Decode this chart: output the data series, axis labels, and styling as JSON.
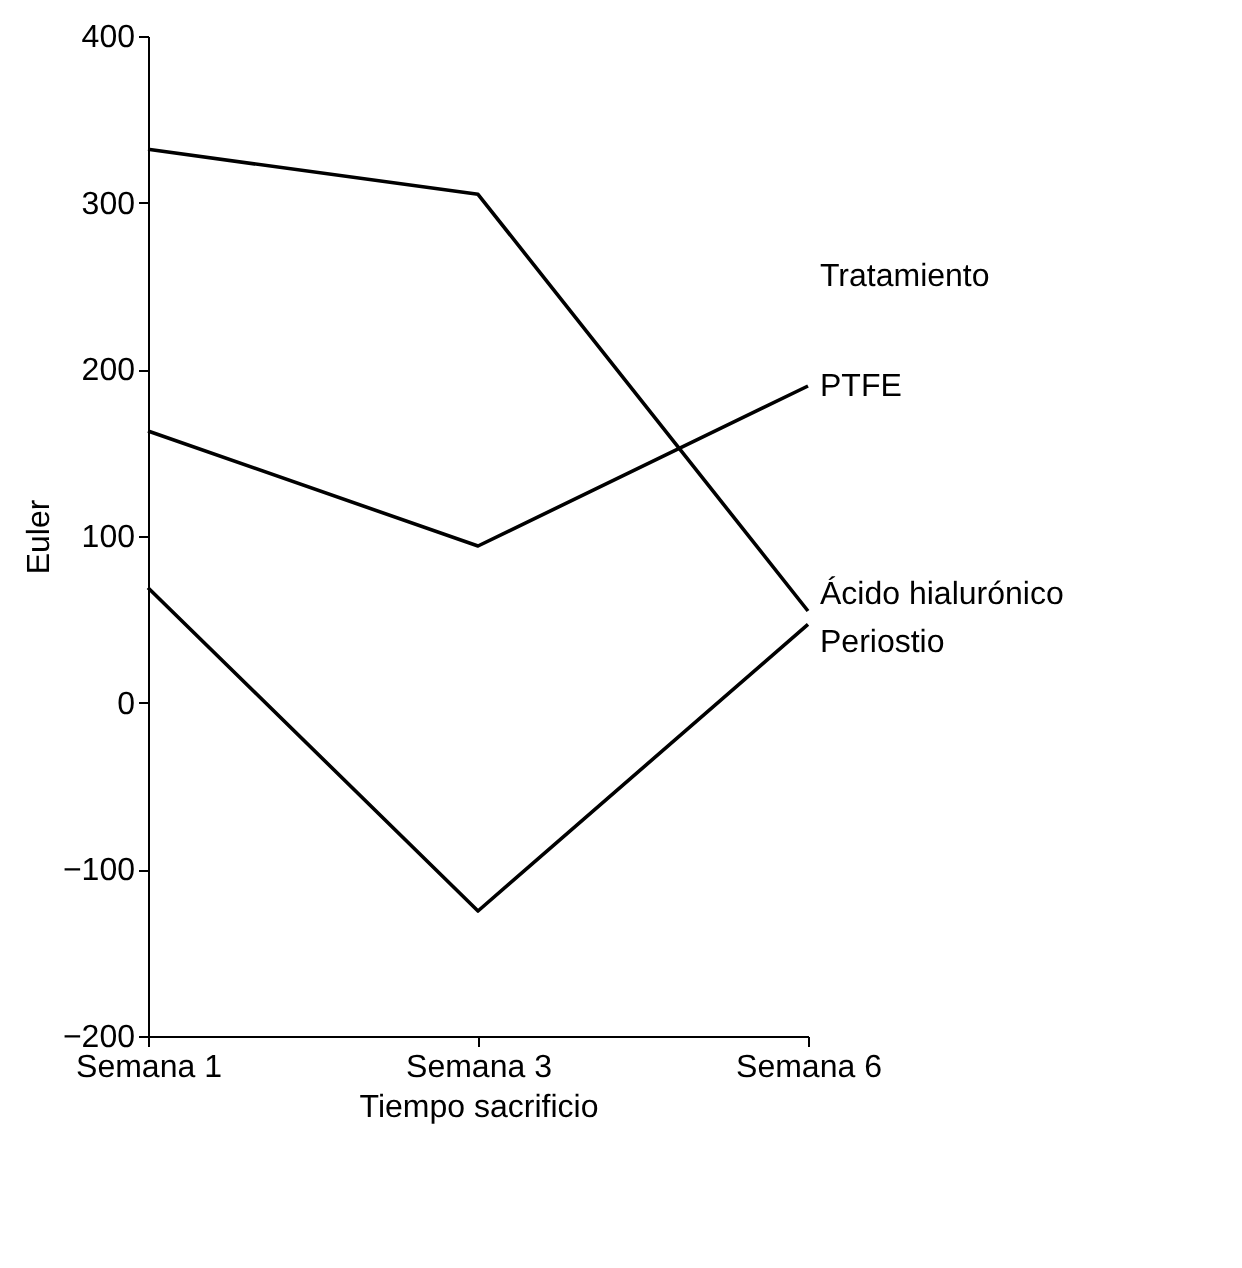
{
  "chart_data": {
    "type": "line",
    "xlabel": "Tiempo sacrificio",
    "ylabel": "Euler",
    "legend_title": "Tratamiento",
    "categories": [
      "Semana 1",
      "Semana 3",
      "Semana 6"
    ],
    "series": [
      {
        "name": "Ácido hialurónico",
        "color": "#000000",
        "values": [
          332,
          305,
          55
        ]
      },
      {
        "name": "PTFE",
        "color": "#000000",
        "values": [
          163,
          94,
          190
        ]
      },
      {
        "name": "Periostio",
        "color": "#000000",
        "values": [
          69,
          -125,
          47
        ]
      }
    ],
    "ylim": [
      -200,
      400
    ],
    "yticks": [
      -200,
      -100,
      0,
      100,
      200,
      300,
      400
    ],
    "grid": false,
    "marker": "none",
    "line_style": "solid"
  }
}
